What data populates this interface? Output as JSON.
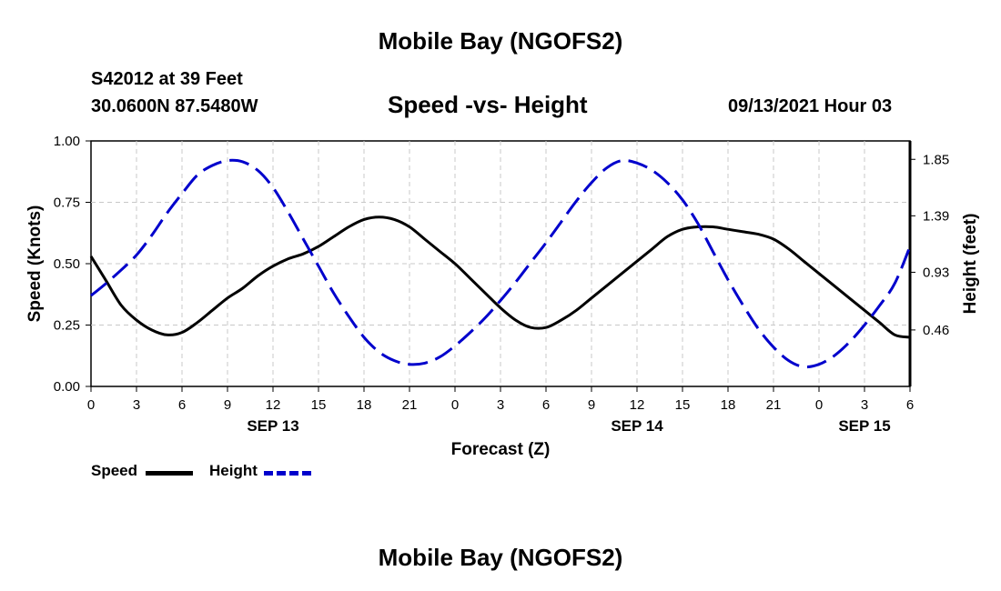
{
  "header": {
    "title": "Mobile Bay (NGOFS2)",
    "station": "S42012 at 39 Feet",
    "coords": "30.0600N  87.5480W",
    "subtitle": "Speed -vs- Height",
    "timestamp": "09/13/2021 Hour 03"
  },
  "footer": {
    "title": "Mobile Bay (NGOFS2)"
  },
  "legend": {
    "speed_label": "Speed",
    "height_label": "Height"
  },
  "chart_data": {
    "type": "line",
    "xlabel": "Forecast (Z)",
    "ylabel_left": "Speed (Knots)",
    "ylabel_right": "Height (feet)",
    "x_tick_labels": [
      "0",
      "3",
      "6",
      "9",
      "12",
      "15",
      "18",
      "21",
      "0",
      "3",
      "6",
      "9",
      "12",
      "15",
      "18",
      "21",
      "0",
      "3",
      "6"
    ],
    "date_labels": [
      {
        "label": "SEP 13",
        "hour": 12
      },
      {
        "label": "SEP 14",
        "hour": 36
      },
      {
        "label": "SEP 15",
        "hour": 51
      }
    ],
    "x_range": [
      0,
      54
    ],
    "y_left": {
      "range": [
        0,
        1.0
      ],
      "ticks": [
        "0.00",
        "0.25",
        "0.50",
        "0.75",
        "1.00"
      ]
    },
    "y_right": {
      "range": [
        0,
        2.0
      ],
      "ticks": [
        {
          "label": "0.46",
          "value": 0.46
        },
        {
          "label": "0.93",
          "value": 0.93
        },
        {
          "label": "1.39",
          "value": 1.39
        },
        {
          "label": "1.85",
          "value": 1.85
        }
      ]
    },
    "grid": true,
    "series": [
      {
        "name": "Speed",
        "axis": "left",
        "color": "#000000",
        "dash": "solid",
        "x": [
          0,
          1,
          2,
          3,
          4,
          5,
          6,
          7,
          8,
          9,
          10,
          11,
          12,
          13,
          14,
          15,
          16,
          17,
          18,
          19,
          20,
          21,
          22,
          23,
          24,
          25,
          26,
          27,
          28,
          29,
          30,
          31,
          32,
          33,
          34,
          35,
          36,
          37,
          38,
          39,
          40,
          41,
          42,
          43,
          44,
          45,
          46,
          47,
          48,
          49,
          50,
          51,
          52,
          53,
          54
        ],
        "values": [
          0.53,
          0.43,
          0.33,
          0.27,
          0.23,
          0.21,
          0.22,
          0.26,
          0.31,
          0.36,
          0.4,
          0.45,
          0.49,
          0.52,
          0.54,
          0.57,
          0.61,
          0.65,
          0.68,
          0.69,
          0.68,
          0.65,
          0.6,
          0.55,
          0.5,
          0.44,
          0.38,
          0.32,
          0.27,
          0.24,
          0.24,
          0.27,
          0.31,
          0.36,
          0.41,
          0.46,
          0.51,
          0.56,
          0.61,
          0.64,
          0.65,
          0.65,
          0.64,
          0.63,
          0.62,
          0.6,
          0.56,
          0.51,
          0.46,
          0.41,
          0.36,
          0.31,
          0.26,
          0.21,
          0.2
        ]
      },
      {
        "name": "Height",
        "axis": "right",
        "color": "#0000cc",
        "dash": "dashed",
        "x": [
          0,
          1,
          2,
          3,
          4,
          5,
          6,
          7,
          8,
          9,
          10,
          11,
          12,
          13,
          14,
          15,
          16,
          17,
          18,
          19,
          20,
          21,
          22,
          23,
          24,
          25,
          26,
          27,
          28,
          29,
          30,
          31,
          32,
          33,
          34,
          35,
          36,
          37,
          38,
          39,
          40,
          41,
          42,
          43,
          44,
          45,
          46,
          47,
          48,
          49,
          50,
          51,
          52,
          53,
          54
        ],
        "values": [
          0.74,
          0.84,
          0.95,
          1.07,
          1.23,
          1.41,
          1.57,
          1.72,
          1.8,
          1.84,
          1.83,
          1.76,
          1.62,
          1.42,
          1.2,
          0.98,
          0.76,
          0.57,
          0.4,
          0.28,
          0.21,
          0.18,
          0.19,
          0.24,
          0.33,
          0.44,
          0.56,
          0.7,
          0.85,
          1.01,
          1.17,
          1.34,
          1.51,
          1.66,
          1.78,
          1.84,
          1.82,
          1.76,
          1.66,
          1.52,
          1.33,
          1.1,
          0.87,
          0.66,
          0.47,
          0.32,
          0.21,
          0.16,
          0.18,
          0.25,
          0.36,
          0.5,
          0.66,
          0.84,
          1.14
        ]
      }
    ]
  }
}
